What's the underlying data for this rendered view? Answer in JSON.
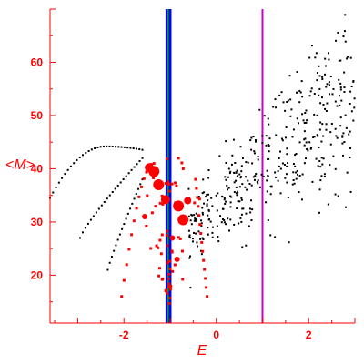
{
  "chart_data": {
    "type": "scatter",
    "xlabel": "E",
    "ylabel": "<M>",
    "xlim": [
      -3.6,
      3.0
    ],
    "ylim": [
      11.0,
      70.0
    ],
    "x_ticks": [
      -2,
      0,
      2
    ],
    "y_ticks": [
      20,
      30,
      40,
      50,
      60
    ],
    "colors": {
      "axis": "#ff0000",
      "black_points": "#000000",
      "red_points": "#ff0000",
      "line_blue": "#0000ff",
      "line_green": "#00aa00",
      "line_magenta": "#cc00cc"
    },
    "vertical_lines": [
      {
        "x": -1.07,
        "color": "#0000ff"
      },
      {
        "x": -1.03,
        "color": "#00aa00"
      },
      {
        "x": -1.0,
        "color": "#0000ff"
      },
      {
        "x": 1.0,
        "color": "#cc00cc"
      }
    ],
    "black_curves": [
      {
        "x_start": -3.6,
        "x_end": -1.6,
        "points": 32
      },
      {
        "x_start": -2.95,
        "x_end": -1.6,
        "points": 24
      },
      {
        "x_start": -2.35,
        "x_end": -1.6,
        "points": 18
      }
    ],
    "black_cloud": {
      "count": 420,
      "x_center": 1.0,
      "x_spread": 1.6
    },
    "red_points": [
      {
        "x": -1.45,
        "y": 40.2,
        "size": 5
      },
      {
        "x": -1.35,
        "y": 39.5,
        "size": 6
      },
      {
        "x": -1.25,
        "y": 37.0,
        "size": 6
      },
      {
        "x": -1.1,
        "y": 34.2,
        "size": 5
      },
      {
        "x": -0.82,
        "y": 33.0,
        "size": 6
      },
      {
        "x": -0.72,
        "y": 30.4,
        "size": 6
      },
      {
        "x": -0.62,
        "y": 34.0,
        "size": 4
      },
      {
        "x": -1.55,
        "y": 31.0,
        "size": 3
      },
      {
        "x": -0.95,
        "y": 27.0,
        "size": 3
      },
      {
        "x": -0.85,
        "y": 23.0,
        "size": 3
      }
    ]
  }
}
